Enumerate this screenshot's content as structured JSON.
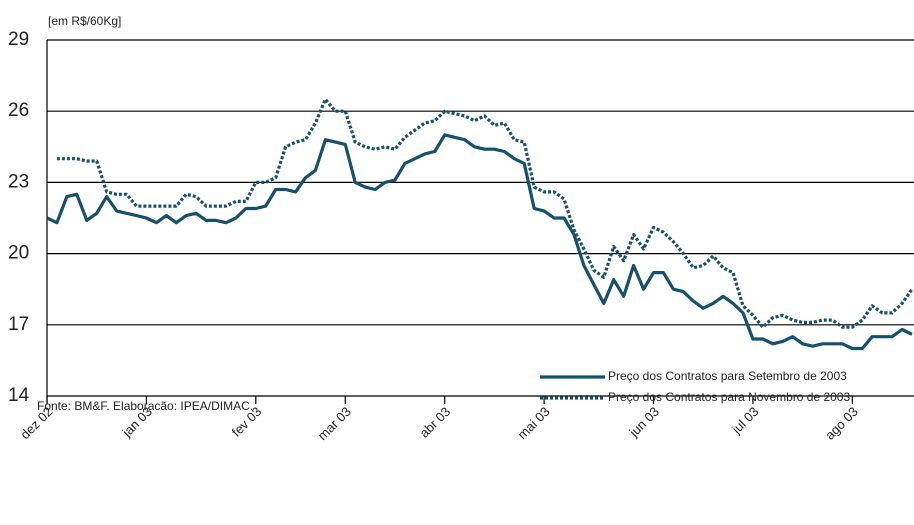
{
  "chart_data": {
    "type": "line",
    "unit_label": "[em R$/60Kg]",
    "source": "Fonte: BM&F. Elaboracão: IPEA/DIMAC.",
    "categories": [
      "dez 02",
      null,
      null,
      null,
      null,
      null,
      null,
      null,
      null,
      null,
      "jan 03",
      null,
      null,
      null,
      null,
      null,
      null,
      null,
      null,
      null,
      null,
      "fev 03",
      null,
      null,
      null,
      null,
      null,
      null,
      null,
      null,
      "mar 03",
      null,
      null,
      null,
      null,
      null,
      null,
      null,
      null,
      null,
      "abr 03",
      null,
      null,
      null,
      null,
      null,
      null,
      null,
      null,
      null,
      "mai 03",
      null,
      null,
      null,
      null,
      null,
      null,
      null,
      null,
      null,
      null,
      "jun 03",
      null,
      null,
      null,
      null,
      null,
      null,
      null,
      null,
      null,
      "jul 03",
      null,
      null,
      null,
      null,
      null,
      null,
      null,
      null,
      null,
      "ago 03",
      null,
      null,
      null,
      null,
      null,
      null
    ],
    "series": [
      {
        "name": "Preço dos Contratos para Setembro de 2003",
        "color": "#17506d",
        "style": "solid",
        "values": [
          21.5,
          21.3,
          22.4,
          22.5,
          21.4,
          21.7,
          22.4,
          21.8,
          21.7,
          21.6,
          21.5,
          21.3,
          21.6,
          21.3,
          21.6,
          21.7,
          21.4,
          21.4,
          21.3,
          21.5,
          21.9,
          21.9,
          22.0,
          22.7,
          22.7,
          22.6,
          23.2,
          23.5,
          24.8,
          24.7,
          24.6,
          23.0,
          22.8,
          22.7,
          23.0,
          23.1,
          23.8,
          24.0,
          24.2,
          24.3,
          25.0,
          24.9,
          24.8,
          24.5,
          24.4,
          24.4,
          24.3,
          24.0,
          23.8,
          21.9,
          21.8,
          21.5,
          21.5,
          20.8,
          19.5,
          18.7,
          17.9,
          18.9,
          18.2,
          19.5,
          18.5,
          19.2,
          19.2,
          18.5,
          18.4,
          18.0,
          17.7,
          17.9,
          18.2,
          17.9,
          17.5,
          16.4,
          16.4,
          16.2,
          16.3,
          16.5,
          16.2,
          16.1,
          16.2,
          16.2,
          16.2,
          16.0,
          16.0,
          16.5,
          16.5,
          16.5,
          16.8,
          16.6
        ]
      },
      {
        "name": "Preço dos Contratos para Novembro de 2003",
        "color": "#17506d",
        "style": "dotted",
        "values": [
          null,
          24.0,
          24.0,
          24.0,
          23.9,
          23.9,
          22.6,
          22.5,
          22.5,
          22.0,
          22.0,
          22.0,
          22.0,
          22.0,
          22.5,
          22.4,
          22.0,
          22.0,
          22.0,
          22.2,
          22.2,
          23.0,
          23.0,
          23.2,
          24.5,
          24.7,
          24.8,
          25.5,
          26.5,
          26.0,
          26.0,
          24.7,
          24.5,
          24.4,
          24.5,
          24.4,
          24.9,
          25.2,
          25.5,
          25.6,
          26.0,
          25.9,
          25.8,
          25.6,
          25.8,
          25.4,
          25.5,
          24.8,
          24.7,
          22.8,
          22.6,
          22.6,
          22.3,
          21.0,
          20.2,
          19.3,
          19.0,
          20.3,
          19.7,
          20.8,
          20.2,
          21.1,
          20.9,
          20.5,
          20.0,
          19.4,
          19.5,
          19.9,
          19.4,
          19.2,
          17.8,
          17.4,
          16.9,
          17.3,
          17.4,
          17.2,
          17.1,
          17.1,
          17.2,
          17.2,
          16.9,
          16.9,
          17.2,
          17.8,
          17.5,
          17.5,
          17.9,
          18.5
        ]
      }
    ],
    "ylim": [
      14,
      29
    ],
    "yticks": [
      14,
      17,
      20,
      23,
      26,
      29
    ],
    "grid": true
  }
}
